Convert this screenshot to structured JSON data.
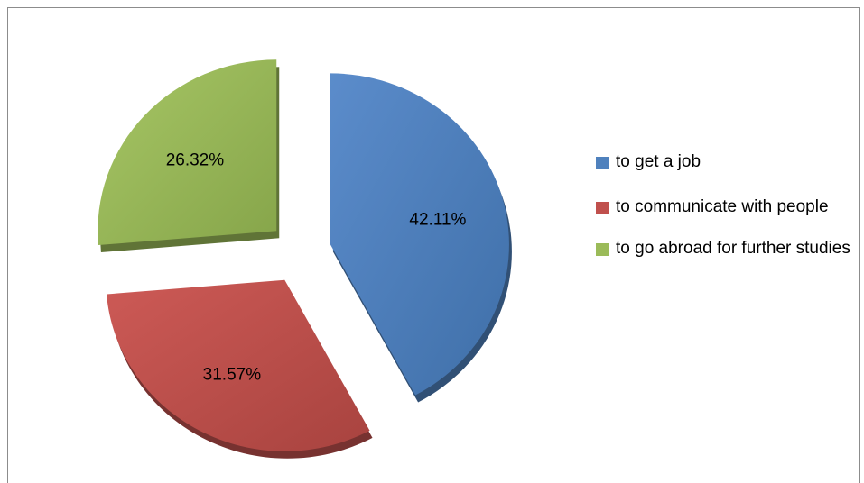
{
  "chart_data": {
    "type": "pie",
    "exploded": true,
    "style": "3d",
    "title": "",
    "legend_position": "right",
    "slices": [
      {
        "name": "to get a job",
        "value": 42.11,
        "label": "42.11%",
        "color": "#4f81bd"
      },
      {
        "name": "to communicate with people",
        "value": 31.57,
        "label": "31.57%",
        "color": "#c0504d"
      },
      {
        "name": "to go abroad for further studies",
        "value": 26.32,
        "label": "26.32%",
        "color": "#9bbb59"
      }
    ]
  }
}
